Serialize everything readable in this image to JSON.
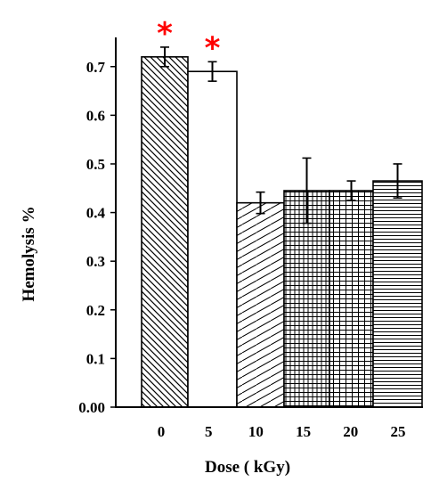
{
  "chart_data": {
    "type": "bar",
    "title": "",
    "xlabel": "Dose ( kGy)",
    "ylabel": "Hemolysis %",
    "categories": [
      "0",
      "5",
      "10",
      "15",
      "20",
      "25"
    ],
    "values": [
      0.72,
      0.69,
      0.42,
      0.445,
      0.445,
      0.465
    ],
    "errors": [
      0.02,
      0.02,
      0.022,
      0.067,
      0.02,
      0.035
    ],
    "significant": [
      true,
      true,
      false,
      false,
      false,
      false
    ],
    "significance_marker": "*",
    "y_ticks": [
      "0.00",
      "0.1",
      "0.2",
      "0.3",
      "0.4",
      "0.5",
      "0.6",
      "0.7"
    ],
    "ylim": [
      0,
      0.76
    ],
    "grid": false,
    "legend": "none",
    "colors": {
      "bar_outline": "#000000",
      "bar_fill": "#ffffff",
      "marker": "#ff0000"
    },
    "bar_patterns": [
      "diagonal-down-dense",
      "none",
      "diagonal-up-sparse",
      "grid-dense",
      "horizontal-vertical",
      "horizontal-dense"
    ]
  }
}
